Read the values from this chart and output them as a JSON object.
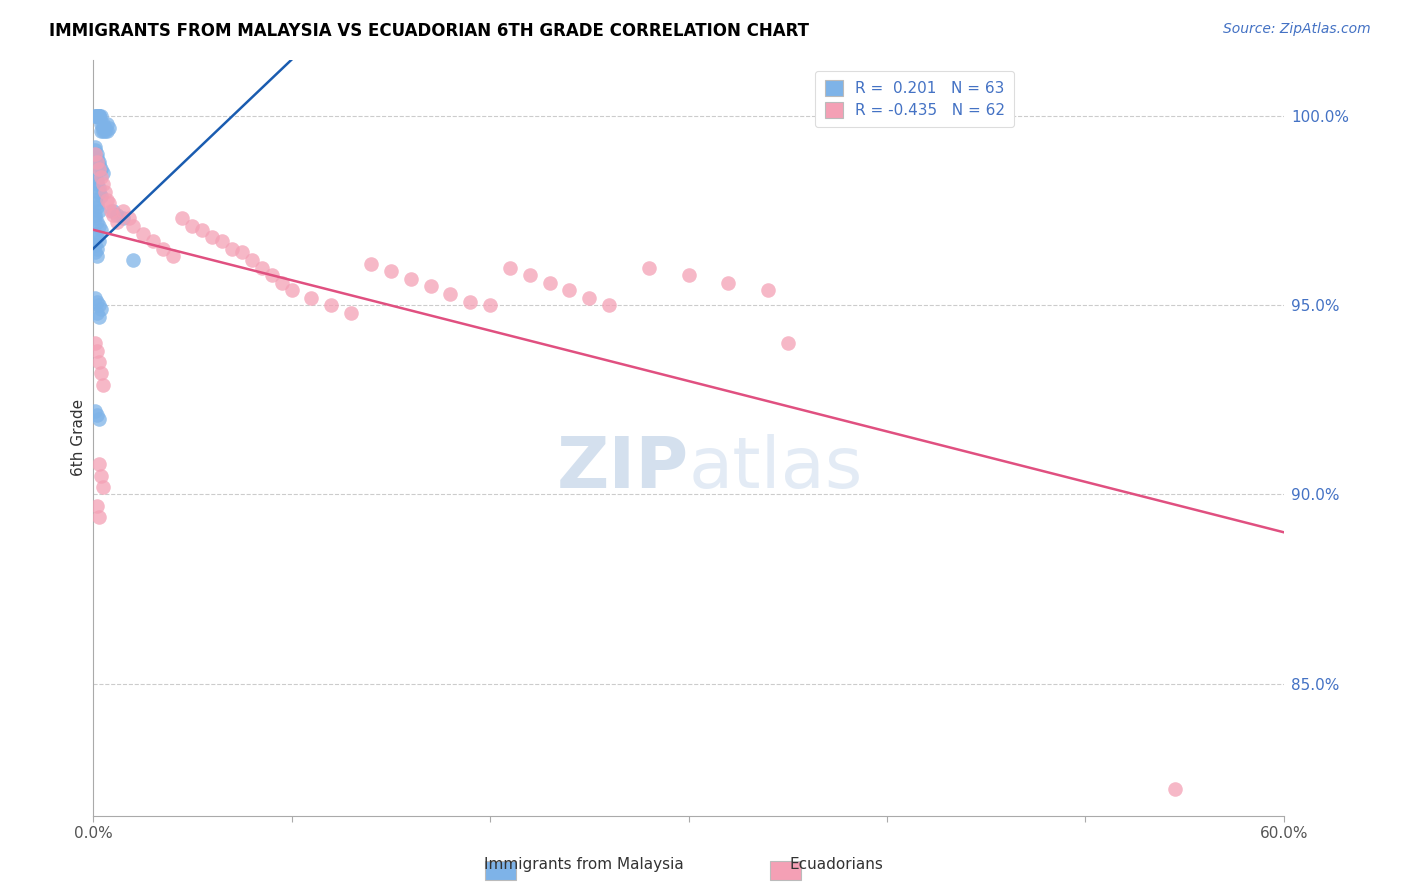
{
  "title": "IMMIGRANTS FROM MALAYSIA VS ECUADORIAN 6TH GRADE CORRELATION CHART",
  "source": "Source: ZipAtlas.com",
  "ylabel": "6th Grade",
  "ytick_labels": [
    "100.0%",
    "95.0%",
    "90.0%",
    "85.0%"
  ],
  "ytick_values": [
    1.0,
    0.95,
    0.9,
    0.85
  ],
  "r1": 0.201,
  "n1": 63,
  "r2": -0.435,
  "n2": 62,
  "blue_color": "#7EB3E8",
  "pink_color": "#F4A0B5",
  "blue_line_color": "#1A5CB0",
  "pink_line_color": "#E05080",
  "xlim": [
    0.0,
    0.6
  ],
  "ylim": [
    0.815,
    1.015
  ],
  "legend_blue_r": "R =  0.201",
  "legend_blue_n": "N = 63",
  "legend_pink_r": "R = -0.435",
  "legend_pink_n": "N = 62",
  "blue_x": [
    0.001,
    0.001,
    0.002,
    0.002,
    0.002,
    0.003,
    0.003,
    0.003,
    0.003,
    0.004,
    0.004,
    0.004,
    0.005,
    0.005,
    0.005,
    0.006,
    0.006,
    0.007,
    0.007,
    0.008,
    0.001,
    0.001,
    0.002,
    0.002,
    0.003,
    0.003,
    0.004,
    0.005,
    0.001,
    0.002,
    0.002,
    0.003,
    0.003,
    0.004,
    0.001,
    0.002,
    0.002,
    0.003,
    0.001,
    0.001,
    0.002,
    0.003,
    0.004,
    0.001,
    0.002,
    0.003,
    0.001,
    0.002,
    0.001,
    0.002,
    0.01,
    0.012,
    0.015,
    0.02,
    0.001,
    0.002,
    0.003,
    0.004,
    0.002,
    0.003,
    0.001,
    0.002,
    0.003
  ],
  "blue_y": [
    1.0,
    1.0,
    1.0,
    1.0,
    1.0,
    1.0,
    1.0,
    1.0,
    1.0,
    1.0,
    0.998,
    0.996,
    0.998,
    0.997,
    0.996,
    0.997,
    0.996,
    0.998,
    0.996,
    0.997,
    0.992,
    0.991,
    0.99,
    0.989,
    0.988,
    0.987,
    0.986,
    0.985,
    0.984,
    0.983,
    0.982,
    0.981,
    0.98,
    0.979,
    0.978,
    0.977,
    0.976,
    0.975,
    0.974,
    0.973,
    0.972,
    0.971,
    0.97,
    0.969,
    0.968,
    0.967,
    0.966,
    0.965,
    0.964,
    0.963,
    0.975,
    0.974,
    0.973,
    0.962,
    0.952,
    0.951,
    0.95,
    0.949,
    0.948,
    0.947,
    0.922,
    0.921,
    0.92
  ],
  "pink_x": [
    0.001,
    0.002,
    0.003,
    0.004,
    0.005,
    0.006,
    0.007,
    0.008,
    0.009,
    0.01,
    0.012,
    0.015,
    0.018,
    0.02,
    0.025,
    0.03,
    0.035,
    0.04,
    0.045,
    0.05,
    0.055,
    0.06,
    0.065,
    0.07,
    0.075,
    0.08,
    0.085,
    0.09,
    0.095,
    0.1,
    0.11,
    0.12,
    0.13,
    0.14,
    0.15,
    0.16,
    0.17,
    0.18,
    0.19,
    0.2,
    0.21,
    0.22,
    0.23,
    0.24,
    0.25,
    0.26,
    0.28,
    0.3,
    0.32,
    0.34,
    0.001,
    0.002,
    0.003,
    0.004,
    0.005,
    0.003,
    0.004,
    0.005,
    0.002,
    0.003,
    0.35,
    0.545
  ],
  "pink_y": [
    0.99,
    0.988,
    0.986,
    0.984,
    0.982,
    0.98,
    0.978,
    0.977,
    0.975,
    0.974,
    0.972,
    0.975,
    0.973,
    0.971,
    0.969,
    0.967,
    0.965,
    0.963,
    0.973,
    0.971,
    0.97,
    0.968,
    0.967,
    0.965,
    0.964,
    0.962,
    0.96,
    0.958,
    0.956,
    0.954,
    0.952,
    0.95,
    0.948,
    0.961,
    0.959,
    0.957,
    0.955,
    0.953,
    0.951,
    0.95,
    0.96,
    0.958,
    0.956,
    0.954,
    0.952,
    0.95,
    0.96,
    0.958,
    0.956,
    0.954,
    0.94,
    0.938,
    0.935,
    0.932,
    0.929,
    0.908,
    0.905,
    0.902,
    0.897,
    0.894,
    0.94,
    0.822
  ]
}
